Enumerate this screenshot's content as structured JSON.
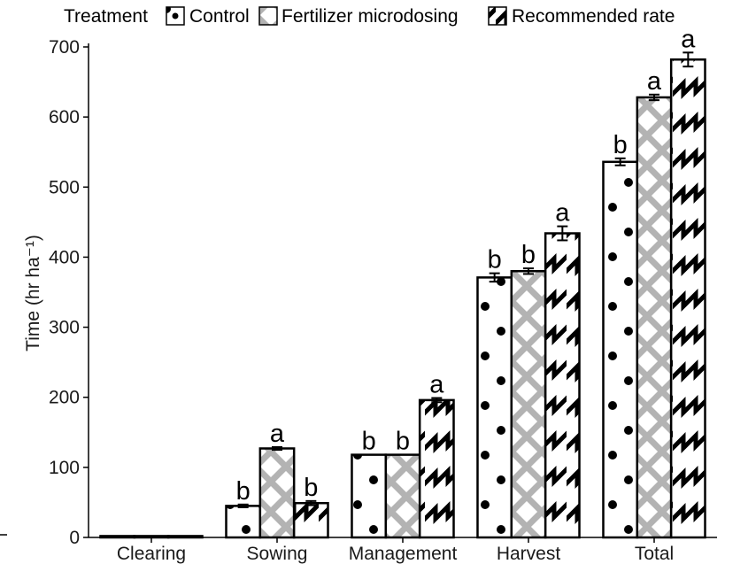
{
  "legend": {
    "title": "Treatment",
    "items": [
      {
        "label": "Control",
        "pattern": "dots"
      },
      {
        "label": "Fertilizer microdosing",
        "pattern": "crosshatch"
      },
      {
        "label": "Recommended rate",
        "pattern": "zigzag"
      }
    ]
  },
  "chart_data": {
    "type": "bar",
    "xlabel": "",
    "ylabel": "Time (hr ha⁻¹)",
    "ylim": [
      0,
      700
    ],
    "yticks": [
      0,
      100,
      200,
      300,
      400,
      500,
      600,
      700
    ],
    "categories": [
      "Clearing",
      "Sowing",
      "Management",
      "Harvest",
      "Total"
    ],
    "series": [
      {
        "name": "Control",
        "values": [
          2,
          45,
          118,
          371,
          536
        ],
        "errors": [
          0,
          2,
          0,
          6,
          5
        ],
        "labels": [
          "",
          "b",
          "b",
          "b",
          "b"
        ]
      },
      {
        "name": "Fertilizer microdosing",
        "values": [
          2,
          127,
          118,
          380,
          628
        ],
        "errors": [
          0,
          2,
          0,
          4,
          4
        ],
        "labels": [
          "",
          "a",
          "b",
          "b",
          "a"
        ]
      },
      {
        "name": "Recommended rate",
        "values": [
          2,
          49,
          196,
          434,
          682
        ],
        "errors": [
          0,
          3,
          3,
          10,
          10
        ],
        "labels": [
          "",
          "b",
          "a",
          "a",
          "a"
        ]
      }
    ],
    "grid": false,
    "legend_position": "top"
  },
  "colors": {
    "bar_fill": "#ffffff",
    "stroke": "#000000",
    "hatch_gray": "#b3b3b3",
    "text": "#1a1a1a"
  }
}
